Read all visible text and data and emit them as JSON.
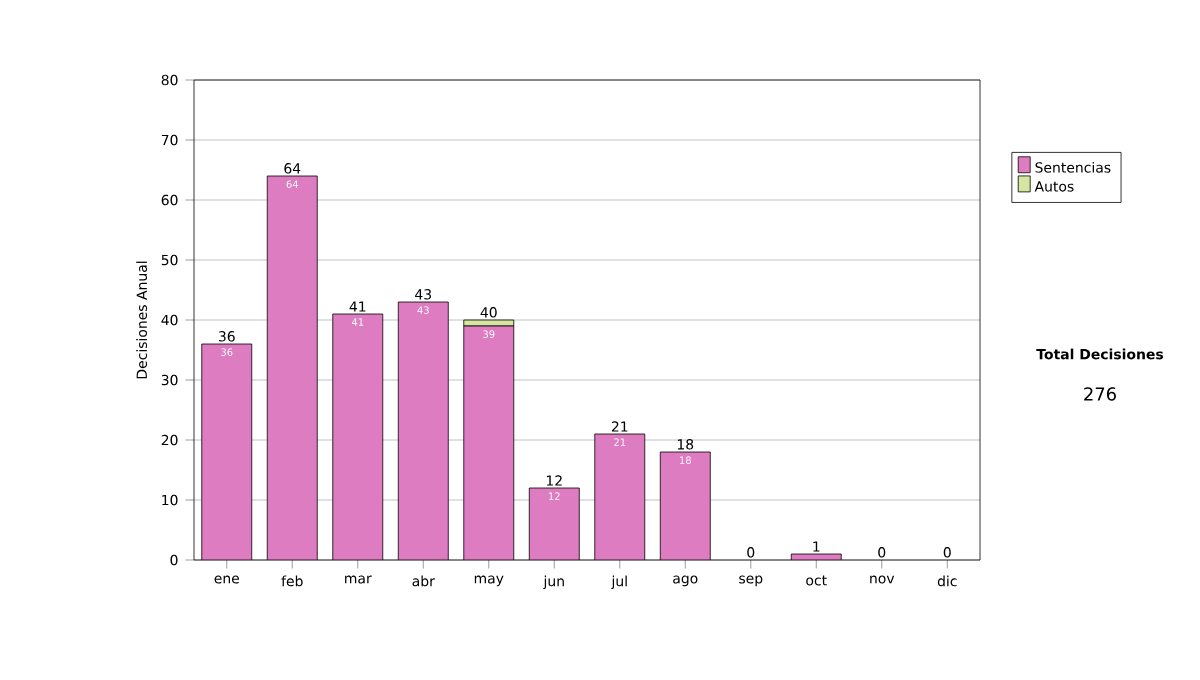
{
  "chart_data": {
    "type": "bar",
    "stacked": true,
    "ylabel": "Decisiones Anual",
    "categories": [
      "ene",
      "feb",
      "mar",
      "abr",
      "may",
      "jun",
      "jul",
      "ago",
      "sep",
      "oct",
      "nov",
      "dic"
    ],
    "series": [
      {
        "name": "Sentencias",
        "color": "#dd7cc0",
        "values": [
          36,
          64,
          41,
          43,
          39,
          12,
          21,
          18,
          0,
          1,
          0,
          0
        ],
        "value_labels": [
          "36",
          "64",
          "41",
          "43",
          "39",
          "12",
          "21",
          "18",
          null,
          null,
          null,
          null
        ]
      },
      {
        "name": "Autos",
        "color": "#d6e6a0",
        "values": [
          0,
          0,
          0,
          0,
          1,
          0,
          0,
          0,
          0,
          0,
          0,
          0
        ]
      }
    ],
    "totals": [
      "36",
      "64",
      "41",
      "43",
      "40",
      "12",
      "21",
      "18",
      "0",
      "1",
      "0",
      "0"
    ],
    "ylim": [
      0,
      80
    ],
    "yticks": [
      0,
      10,
      20,
      30,
      40,
      50,
      60,
      70,
      80
    ],
    "grid": "y",
    "legend": "right",
    "annotations": [
      "Total Decisiones",
      "276"
    ]
  }
}
